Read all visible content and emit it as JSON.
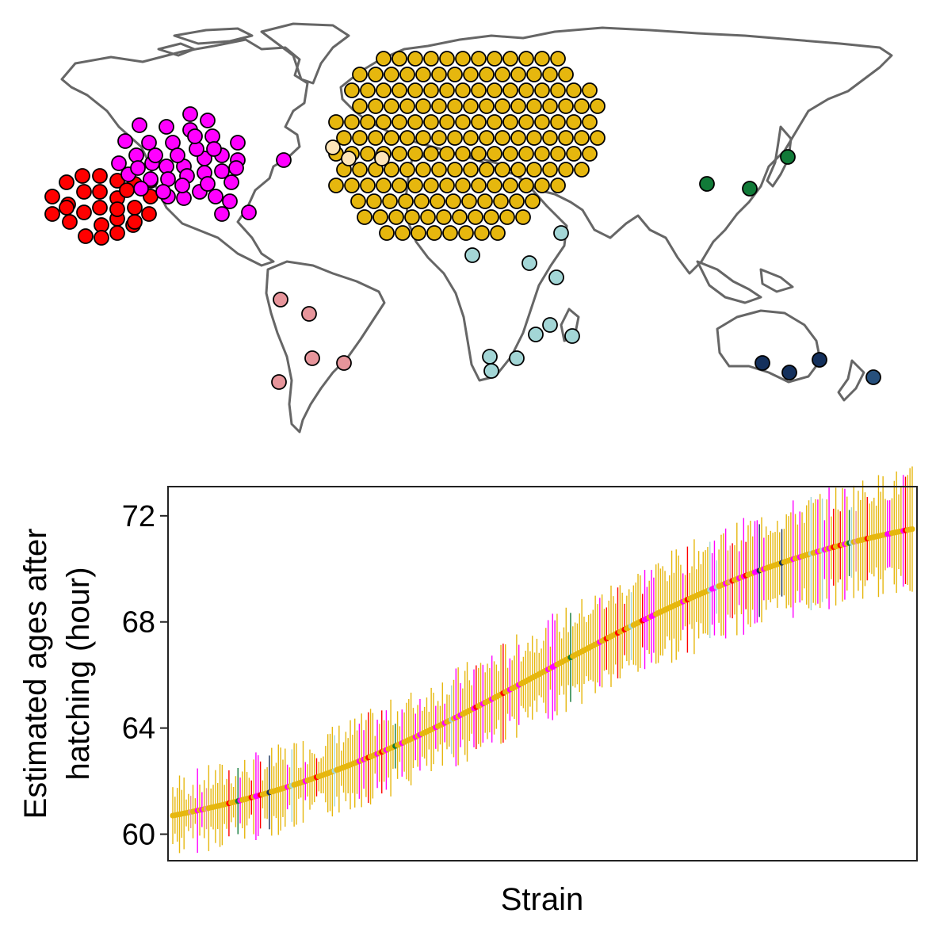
{
  "colors": {
    "map_line": "#666666",
    "dot_stroke": "#000000",
    "cluster_red": "#ff0000",
    "cluster_magenta": "#ff00ff",
    "cluster_gold": "#e6b70e",
    "cluster_cream": "#fde5b8",
    "cluster_teal": "#a3d6d6",
    "cluster_pink": "#e7959b",
    "cluster_green": "#117a38",
    "cluster_navy": "#14305c",
    "cluster_navy2": "#27507c"
  },
  "chart_data": [
    {
      "type": "map",
      "description_of_marks": "world map with clustered sample markers",
      "clusters": [
        {
          "color": "cluster_red",
          "count": 28
        },
        {
          "color": "cluster_magenta",
          "count": 44
        },
        {
          "color": "cluster_gold",
          "count": 170
        },
        {
          "color": "cluster_cream",
          "count": 3
        },
        {
          "color": "cluster_teal",
          "count": 13
        },
        {
          "color": "cluster_pink",
          "count": 5
        },
        {
          "color": "cluster_green",
          "count": 3
        },
        {
          "color": "cluster_navy",
          "count": 4
        }
      ]
    },
    {
      "type": "scatter",
      "subtype": "sorted point estimates with error bars",
      "xlabel": "Strain",
      "ylabel": [
        "Estimated ages after",
        "hatching (hour)"
      ],
      "ylim": [
        59,
        73.1
      ],
      "yticks": [
        60,
        64,
        68,
        72
      ],
      "grid": false,
      "n_points": 330,
      "y_start": 60.7,
      "y_end": 71.5,
      "series_colors": [
        "cluster_gold",
        "cluster_magenta",
        "cluster_red",
        "cluster_teal",
        "cluster_navy",
        "cluster_green",
        "cluster_pink"
      ]
    }
  ]
}
